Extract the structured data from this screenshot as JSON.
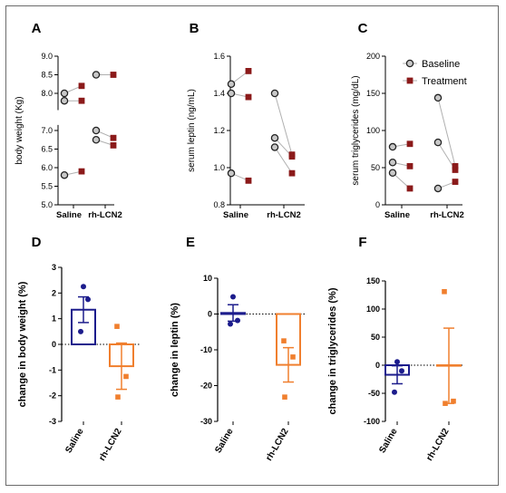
{
  "colors": {
    "baseline_fill": "#c8c8c8",
    "baseline_stroke": "#222222",
    "treatment": "#8b1a1a",
    "pair_line": "#b0b0b0",
    "saline_bar": "#1c1c8c",
    "lcn2_bar": "#f07f2e"
  },
  "chart_data": [
    {
      "panel": "A",
      "type": "scatter",
      "ylabel": "body weight (Kg)",
      "categories": [
        "Saline",
        "rh-LCN2"
      ],
      "ylim": [
        5.0,
        9.0
      ],
      "yticks": [
        "5.0",
        "5.5",
        "6.0",
        "6.5",
        "7.0",
        "7.5",
        "8.0",
        "8.5",
        "9.0"
      ],
      "axis_break": [
        7.15,
        7.55
      ],
      "series": [
        {
          "name": "Baseline",
          "marker": "circle",
          "points": [
            {
              "cat": 0,
              "y": 8.0
            },
            {
              "cat": 0,
              "y": 7.8
            },
            {
              "cat": 0,
              "y": 5.8
            },
            {
              "cat": 1,
              "y": 8.5
            },
            {
              "cat": 1,
              "y": 7.0
            },
            {
              "cat": 1,
              "y": 6.75
            }
          ]
        },
        {
          "name": "Treatment",
          "marker": "square",
          "points": [
            {
              "cat": 0,
              "y": 8.2
            },
            {
              "cat": 0,
              "y": 7.8
            },
            {
              "cat": 0,
              "y": 5.9
            },
            {
              "cat": 1,
              "y": 8.5
            },
            {
              "cat": 1,
              "y": 6.8
            },
            {
              "cat": 1,
              "y": 6.6
            }
          ]
        }
      ],
      "pairs": [
        [
          0,
          0
        ],
        [
          1,
          1
        ],
        [
          2,
          2
        ],
        [
          3,
          3
        ],
        [
          4,
          4
        ],
        [
          5,
          5
        ]
      ]
    },
    {
      "panel": "B",
      "type": "scatter",
      "ylabel": "serum leptin (ng/mL)",
      "categories": [
        "Saline",
        "rh-LCN2"
      ],
      "ylim": [
        0.8,
        1.6
      ],
      "yticks": [
        "0.8",
        "1.0",
        "1.2",
        "1.4",
        "1.6"
      ],
      "series": [
        {
          "name": "Baseline",
          "marker": "circle",
          "points": [
            {
              "cat": 0,
              "y": 1.45
            },
            {
              "cat": 0,
              "y": 1.4
            },
            {
              "cat": 0,
              "y": 0.97
            },
            {
              "cat": 1,
              "y": 1.4
            },
            {
              "cat": 1,
              "y": 1.16
            },
            {
              "cat": 1,
              "y": 1.11
            }
          ]
        },
        {
          "name": "Treatment",
          "marker": "square",
          "points": [
            {
              "cat": 0,
              "y": 1.52
            },
            {
              "cat": 0,
              "y": 1.38
            },
            {
              "cat": 0,
              "y": 0.93
            },
            {
              "cat": 1,
              "y": 1.07
            },
            {
              "cat": 1,
              "y": 1.06
            },
            {
              "cat": 1,
              "y": 0.97
            }
          ]
        }
      ],
      "pairs": [
        [
          0,
          0
        ],
        [
          1,
          1
        ],
        [
          2,
          2
        ],
        [
          3,
          3
        ],
        [
          4,
          4
        ],
        [
          5,
          5
        ]
      ]
    },
    {
      "panel": "C",
      "type": "scatter",
      "ylabel": "serum triglycerides (mg/dL)",
      "categories": [
        "Saline",
        "rh-LCN2"
      ],
      "ylim": [
        0,
        200
      ],
      "yticks": [
        "0",
        "50",
        "100",
        "150",
        "200"
      ],
      "legend": {
        "placement": "top-right",
        "entries": [
          "Baseline",
          "Treatment"
        ]
      },
      "series": [
        {
          "name": "Baseline",
          "marker": "circle",
          "points": [
            {
              "cat": 0,
              "y": 78
            },
            {
              "cat": 0,
              "y": 57
            },
            {
              "cat": 0,
              "y": 43
            },
            {
              "cat": 1,
              "y": 144
            },
            {
              "cat": 1,
              "y": 84
            },
            {
              "cat": 1,
              "y": 22
            }
          ]
        },
        {
          "name": "Treatment",
          "marker": "square",
          "points": [
            {
              "cat": 0,
              "y": 82
            },
            {
              "cat": 0,
              "y": 52
            },
            {
              "cat": 0,
              "y": 22
            },
            {
              "cat": 1,
              "y": 52
            },
            {
              "cat": 1,
              "y": 47
            },
            {
              "cat": 1,
              "y": 31
            }
          ]
        }
      ],
      "pairs": [
        [
          0,
          0
        ],
        [
          1,
          1
        ],
        [
          2,
          2
        ],
        [
          3,
          3
        ],
        [
          4,
          4
        ],
        [
          5,
          5
        ]
      ]
    },
    {
      "panel": "D",
      "type": "bar",
      "ylabel": "change in body weight (%)",
      "categories": [
        "Saline",
        "rh-LCN2"
      ],
      "ylim": [
        -3,
        3
      ],
      "yticks": [
        "-3",
        "-2",
        "-1",
        "0",
        "1",
        "2",
        "3"
      ],
      "series": [
        {
          "name": "Saline",
          "mean": 1.35,
          "sem": 0.5,
          "points": [
            2.25,
            1.75,
            0.5
          ]
        },
        {
          "name": "rh-LCN2",
          "mean": -0.85,
          "sem": 0.9,
          "points": [
            0.7,
            -1.25,
            -2.05
          ]
        }
      ]
    },
    {
      "panel": "E",
      "type": "bar",
      "ylabel": "change in leptin (%)",
      "categories": [
        "Saline",
        "rh-LCN2"
      ],
      "ylim": [
        -30,
        10
      ],
      "yticks": [
        "-30",
        "-20",
        "-10",
        "0",
        "10"
      ],
      "series": [
        {
          "name": "Saline",
          "mean": 0.3,
          "sem": 2.3,
          "points": [
            4.8,
            -1.8,
            -2.8
          ]
        },
        {
          "name": "rh-LCN2",
          "mean": -14.2,
          "sem": 4.8,
          "points": [
            -7.5,
            -12,
            -23.2
          ]
        }
      ]
    },
    {
      "panel": "F",
      "type": "bar",
      "ylabel": "change in triglycerides (%)",
      "categories": [
        "Saline",
        "rh-LCN2"
      ],
      "ylim": [
        -100,
        150
      ],
      "yticks": [
        "-100",
        "-50",
        "0",
        "50",
        "100",
        "150"
      ],
      "series": [
        {
          "name": "Saline",
          "mean": -17,
          "sem": 16,
          "points": [
            6,
            -10,
            -48
          ]
        },
        {
          "name": "rh-LCN2",
          "mean": -1,
          "sem": 67,
          "points": [
            131,
            -64,
            -68
          ]
        }
      ]
    }
  ]
}
